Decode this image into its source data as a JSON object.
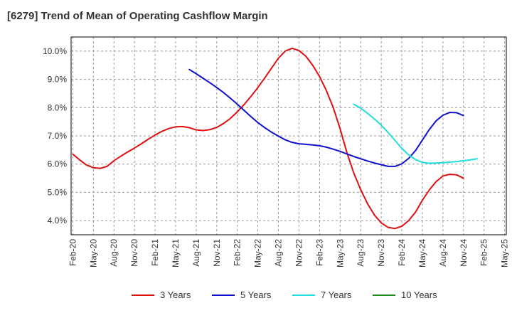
{
  "chart_data": {
    "type": "line",
    "title": "[6279]  Trend of Mean of Operating Cashflow Margin",
    "xlabel": "",
    "ylabel": "",
    "ylim": [
      3.5,
      10.5
    ],
    "y_ticks": [
      4.0,
      5.0,
      6.0,
      7.0,
      8.0,
      9.0,
      10.0
    ],
    "y_tick_labels": [
      "4.0%",
      "5.0%",
      "6.0%",
      "7.0%",
      "8.0%",
      "9.0%",
      "10.0%"
    ],
    "x_tick_labels": [
      "Feb-20",
      "May-20",
      "Aug-20",
      "Nov-20",
      "Feb-21",
      "May-21",
      "Aug-21",
      "Nov-21",
      "Feb-22",
      "May-22",
      "Aug-22",
      "Nov-22",
      "Feb-23",
      "May-23",
      "Aug-23",
      "Nov-23",
      "Feb-24",
      "May-24",
      "Aug-24",
      "Nov-24",
      "Feb-25",
      "May-25"
    ],
    "x_start": "2020-02",
    "x_end": "2025-05",
    "grid": true,
    "legend_position": "bottom",
    "series": [
      {
        "name": "3 Years",
        "color": "#dd1111",
        "start": "2020-02",
        "values": [
          6.35,
          6.15,
          5.97,
          5.87,
          5.85,
          5.92,
          6.12,
          6.28,
          6.43,
          6.57,
          6.72,
          6.88,
          7.03,
          7.16,
          7.26,
          7.32,
          7.33,
          7.29,
          7.21,
          7.19,
          7.22,
          7.3,
          7.44,
          7.62,
          7.85,
          8.11,
          8.4,
          8.71,
          9.05,
          9.4,
          9.75,
          10.0,
          10.1,
          10.02,
          9.82,
          9.5,
          9.1,
          8.6,
          8.0,
          7.25,
          6.4,
          5.68,
          5.1,
          4.6,
          4.2,
          3.92,
          3.76,
          3.72,
          3.8,
          4.0,
          4.3,
          4.72,
          5.08,
          5.38,
          5.58,
          5.64,
          5.62,
          5.5
        ]
      },
      {
        "name": "5 Years",
        "color": "#1111cc",
        "start": "2021-07",
        "values": [
          9.35,
          9.2,
          9.04,
          8.88,
          8.71,
          8.53,
          8.33,
          8.12,
          7.9,
          7.68,
          7.47,
          7.29,
          7.13,
          6.99,
          6.86,
          6.77,
          6.72,
          6.7,
          6.68,
          6.65,
          6.6,
          6.53,
          6.45,
          6.36,
          6.27,
          6.19,
          6.11,
          6.04,
          5.98,
          5.92,
          5.92,
          6.01,
          6.2,
          6.48,
          6.85,
          7.22,
          7.53,
          7.73,
          7.83,
          7.82,
          7.72
        ]
      },
      {
        "name": "7 Years",
        "color": "#22dddd",
        "start": "2023-07",
        "values": [
          8.12,
          7.98,
          7.8,
          7.6,
          7.38,
          7.12,
          6.84,
          6.56,
          6.33,
          6.16,
          6.06,
          6.03,
          6.04,
          6.05,
          6.07,
          6.09,
          6.12,
          6.15,
          6.19
        ]
      },
      {
        "name": "10 Years",
        "color": "#228822",
        "start": "2025-02",
        "values": []
      }
    ]
  }
}
